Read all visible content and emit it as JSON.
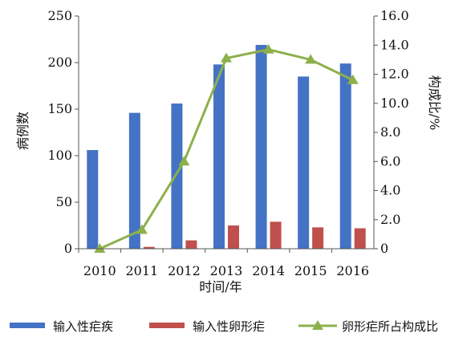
{
  "chart_data": {
    "type": "bar",
    "categories": [
      "2010",
      "2011",
      "2012",
      "2013",
      "2014",
      "2015",
      "2016"
    ],
    "series": [
      {
        "name": "输入性疟疾",
        "kind": "bar",
        "axis": "left",
        "color": "#4472c4",
        "values": [
          106,
          146,
          156,
          198,
          219,
          185,
          199
        ]
      },
      {
        "name": "输入性卵形疟",
        "kind": "bar",
        "axis": "left",
        "color": "#c0504d",
        "values": [
          0,
          2,
          9,
          25,
          29,
          23,
          22
        ]
      },
      {
        "name": "卵形疟所占构成比",
        "kind": "line",
        "axis": "right",
        "color": "#8db04a",
        "marker": "triangle",
        "values": [
          0.0,
          1.3,
          6.0,
          13.1,
          13.7,
          13.0,
          11.6
        ]
      }
    ],
    "xlabel": "时间/年",
    "ylabel_left": "病例数",
    "ylabel_right": "构成比/%",
    "ylim_left": [
      0,
      250
    ],
    "ylim_right": [
      0,
      16
    ],
    "yticks_left": [
      "0",
      "50",
      "100",
      "150",
      "200",
      "250"
    ],
    "yticks_right": [
      "0",
      "2.0",
      "4.0",
      "6.0",
      "8.0",
      "10.0",
      "12.0",
      "14.0",
      "16.0"
    ],
    "grid": false,
    "legend_position": "bottom"
  }
}
